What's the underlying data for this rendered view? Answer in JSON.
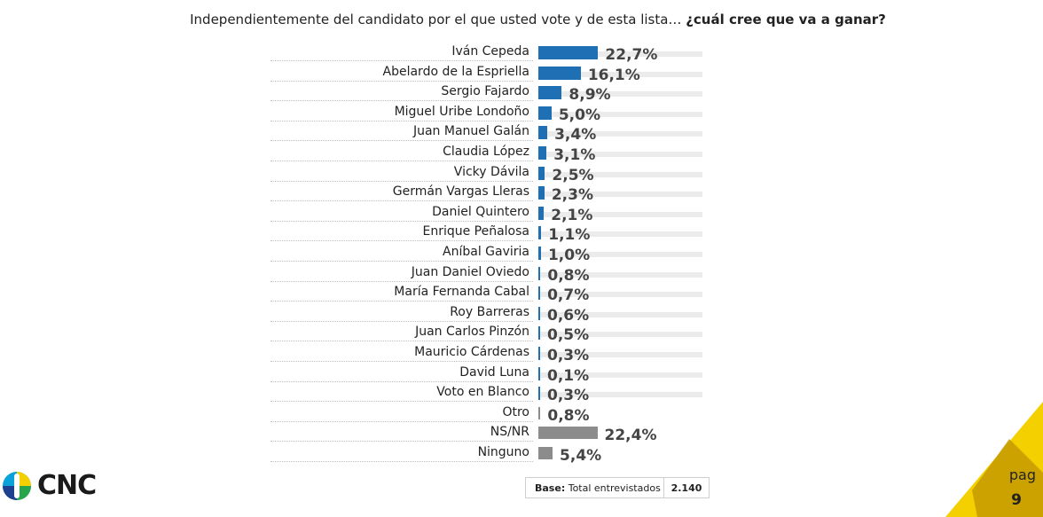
{
  "title": {
    "plain": "Independientemente del candidato por el que usted vote y de esta lista…",
    "bold": "¿cuál cree que va a ganar?"
  },
  "chart_data": {
    "type": "bar",
    "orientation": "horizontal",
    "title": "Independientemente del candidato por el que usted vote y de esta lista… ¿cuál cree que va a ganar?",
    "categories": [
      "Iván Cepeda",
      "Abelardo de la Espriella",
      "Sergio Fajardo",
      "Miguel Uribe Londoño",
      "Juan Manuel Galán",
      "Claudia López",
      "Vicky Dávila",
      "Germán Vargas Lleras",
      "Daniel Quintero",
      "Enrique Peñalosa",
      "Aníbal Gaviria",
      "Juan Daniel Oviedo",
      "María Fernanda Cabal",
      "Roy Barreras",
      "Juan Carlos Pinzón",
      "Mauricio Cárdenas",
      "David Luna",
      "Voto en Blanco",
      "Otro",
      "NS/NR",
      "Ninguno"
    ],
    "values": [
      22.7,
      16.1,
      8.9,
      5.0,
      3.4,
      3.1,
      2.5,
      2.3,
      2.1,
      1.1,
      1.0,
      0.8,
      0.7,
      0.6,
      0.5,
      0.3,
      0.1,
      0.3,
      0.8,
      22.4,
      5.4
    ],
    "value_labels": [
      "22,7%",
      "16,1%",
      "8,9%",
      "5,0%",
      "3,4%",
      "3,1%",
      "2,5%",
      "2,3%",
      "2,1%",
      "1,1%",
      "1,0%",
      "0,8%",
      "0,7%",
      "0,6%",
      "0,5%",
      "0,3%",
      "0,1%",
      "0,3%",
      "0,8%",
      "22,4%",
      "5,4%"
    ],
    "bar_colors": [
      "#1f6fb5",
      "#1f6fb5",
      "#1f6fb5",
      "#1f6fb5",
      "#1f6fb5",
      "#1f6fb5",
      "#1f6fb5",
      "#1f6fb5",
      "#1f6fb5",
      "#1f6fb5",
      "#1f6fb5",
      "#1f6fb5",
      "#1f6fb5",
      "#1f6fb5",
      "#1f6fb5",
      "#1f6fb5",
      "#1f6fb5",
      "#1f6fb5",
      "#8c8c8c",
      "#8c8c8c",
      "#8c8c8c"
    ],
    "xlim": [
      0,
      100
    ],
    "grid": false,
    "legend": "none"
  },
  "base": {
    "label": "Base:",
    "text": "Total entrevistados",
    "value": "2.140"
  },
  "logo": {
    "text": "CNC"
  },
  "page": {
    "label": "pag",
    "number": "9"
  },
  "colors": {
    "candidate_bar": "#1f6fb5",
    "other_bar": "#8c8c8c",
    "track": "#ebebeb",
    "corner_yellow": "#f4d000",
    "corner_dark": "#c49a00"
  }
}
